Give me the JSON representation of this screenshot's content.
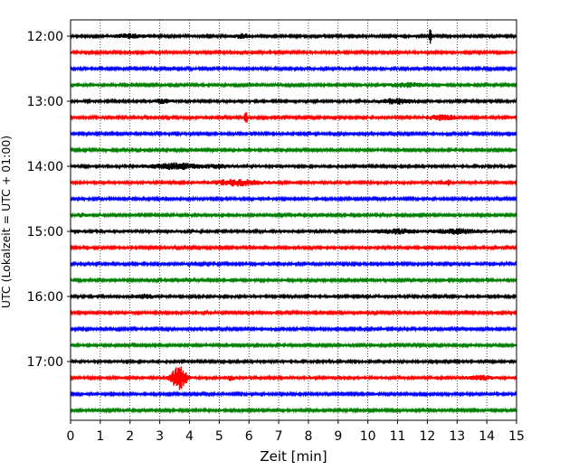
{
  "chart_data": {
    "type": "line",
    "subtype": "helicorder",
    "title": "",
    "xlabel": "Zeit  [min]",
    "ylabel": "UTC (Lokalzeit = UTC + 01:00)",
    "xlim": [
      0,
      15
    ],
    "x_ticks": [
      "0",
      "1",
      "2",
      "3",
      "4",
      "5",
      "6",
      "7",
      "8",
      "9",
      "10",
      "11",
      "12",
      "13",
      "14",
      "15"
    ],
    "y_ticks": [
      "12:00",
      "13:00",
      "14:00",
      "15:00",
      "16:00",
      "17:00"
    ],
    "grid": {
      "x": true,
      "y": false,
      "style": "dotted"
    },
    "colors": [
      "#000000",
      "#ff0000",
      "#0000ff",
      "#008000"
    ],
    "rows": [
      {
        "start": "12:00",
        "color": "#000000",
        "noise": 1.0,
        "events": [
          {
            "t": 2.0,
            "amp": 2,
            "w": 0.5
          },
          {
            "t": 5.8,
            "amp": 2,
            "w": 0.3
          },
          {
            "t": 12.1,
            "amp": 10,
            "w": 0.05
          }
        ]
      },
      {
        "start": "12:15",
        "color": "#ff0000",
        "noise": 1.0,
        "events": []
      },
      {
        "start": "12:30",
        "color": "#0000ff",
        "noise": 1.0,
        "events": []
      },
      {
        "start": "12:45",
        "color": "#008000",
        "noise": 1.0,
        "events": [
          {
            "t": 11.3,
            "amp": 2,
            "w": 0.6
          }
        ]
      },
      {
        "start": "13:00",
        "color": "#000000",
        "noise": 1.1,
        "events": [
          {
            "t": 3.1,
            "amp": 2,
            "w": 0.3
          },
          {
            "t": 11.0,
            "amp": 2.5,
            "w": 0.5
          }
        ]
      },
      {
        "start": "13:15",
        "color": "#ff0000",
        "noise": 1.0,
        "events": [
          {
            "t": 5.9,
            "amp": 7,
            "w": 0.05
          },
          {
            "t": 12.5,
            "amp": 2.5,
            "w": 0.5
          },
          {
            "t": 15.0,
            "amp": 3,
            "w": 0.05
          }
        ]
      },
      {
        "start": "13:30",
        "color": "#0000ff",
        "noise": 1.0,
        "events": []
      },
      {
        "start": "13:45",
        "color": "#008000",
        "noise": 1.0,
        "events": []
      },
      {
        "start": "14:00",
        "color": "#000000",
        "noise": 1.1,
        "events": [
          {
            "t": 3.5,
            "amp": 3,
            "w": 0.8
          },
          {
            "t": 5.0,
            "amp": 1.5,
            "w": 0.4
          }
        ]
      },
      {
        "start": "14:15",
        "color": "#ff0000",
        "noise": 1.1,
        "events": [
          {
            "t": 5.6,
            "amp": 3,
            "w": 0.8
          },
          {
            "t": 12.7,
            "amp": 3,
            "w": 0.1
          }
        ]
      },
      {
        "start": "14:30",
        "color": "#0000ff",
        "noise": 1.0,
        "events": []
      },
      {
        "start": "14:45",
        "color": "#008000",
        "noise": 1.0,
        "events": [
          {
            "t": 0.4,
            "amp": 1.5,
            "w": 0.2
          }
        ]
      },
      {
        "start": "15:00",
        "color": "#000000",
        "noise": 1.2,
        "events": [
          {
            "t": 11.0,
            "amp": 2,
            "w": 0.7
          },
          {
            "t": 13.0,
            "amp": 2,
            "w": 0.7
          }
        ]
      },
      {
        "start": "15:15",
        "color": "#ff0000",
        "noise": 1.0,
        "events": []
      },
      {
        "start": "15:30",
        "color": "#0000ff",
        "noise": 1.0,
        "events": []
      },
      {
        "start": "15:45",
        "color": "#008000",
        "noise": 1.0,
        "events": []
      },
      {
        "start": "16:00",
        "color": "#000000",
        "noise": 1.1,
        "events": [
          {
            "t": 2.5,
            "amp": 2,
            "w": 0.3
          }
        ]
      },
      {
        "start": "16:15",
        "color": "#ff0000",
        "noise": 1.0,
        "events": []
      },
      {
        "start": "16:30",
        "color": "#0000ff",
        "noise": 1.0,
        "events": []
      },
      {
        "start": "16:45",
        "color": "#008000",
        "noise": 1.0,
        "events": []
      },
      {
        "start": "17:00",
        "color": "#000000",
        "noise": 1.1,
        "events": []
      },
      {
        "start": "17:15",
        "color": "#ff0000",
        "noise": 1.1,
        "events": [
          {
            "t": 3.65,
            "amp": 13,
            "w": 0.25
          },
          {
            "t": 5.4,
            "amp": 2.5,
            "w": 0.1
          },
          {
            "t": 13.8,
            "amp": 2,
            "w": 0.4
          }
        ]
      },
      {
        "start": "17:30",
        "color": "#0000ff",
        "noise": 1.0,
        "events": []
      },
      {
        "start": "17:45",
        "color": "#008000",
        "noise": 1.0,
        "events": []
      }
    ]
  }
}
